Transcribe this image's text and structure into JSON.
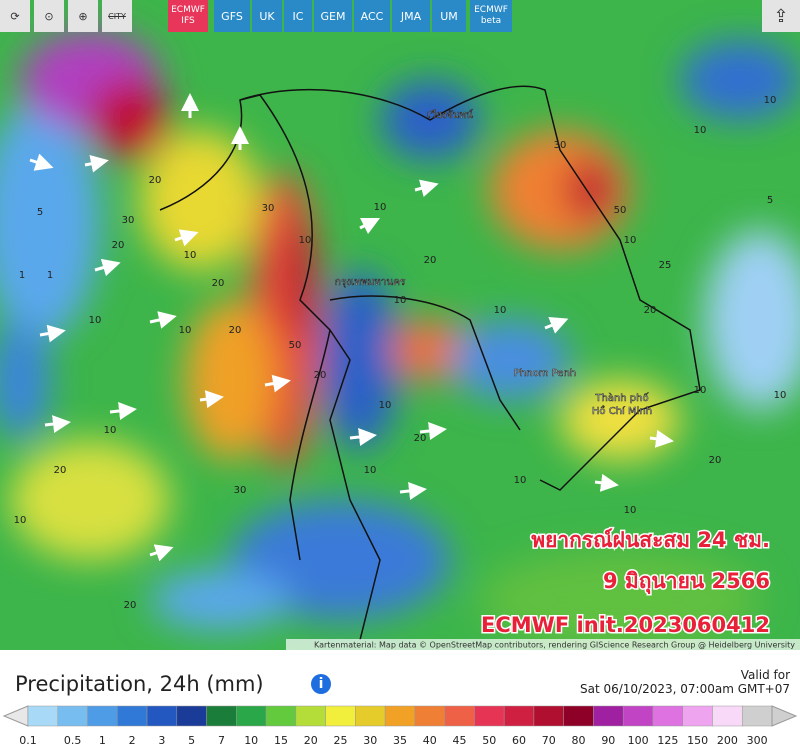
{
  "toolbar": {
    "city": "CITY",
    "models": [
      {
        "line1": "ECMWF",
        "line2": "IFS"
      },
      {
        "line1": "GFS"
      },
      {
        "line1": "UK"
      },
      {
        "line1": "IC"
      },
      {
        "line1": "GEM"
      },
      {
        "line1": "ACC"
      },
      {
        "line1": "JMA"
      },
      {
        "line1": "UM"
      },
      {
        "line1": "ECMWF",
        "line2": "beta"
      }
    ]
  },
  "map": {
    "places": [
      "กรุงเทพมหานคร",
      "Phnom Penh",
      "Thành phố",
      "Hồ Chí Minh",
      "เวียงจันทน์"
    ],
    "contours": [
      20,
      30,
      20,
      1,
      1,
      5,
      10,
      10,
      20,
      10,
      20,
      30,
      10,
      50,
      20,
      10,
      20,
      10,
      10,
      20,
      10,
      30,
      50,
      10,
      25,
      20,
      10,
      10,
      5,
      10,
      20,
      10,
      10,
      10,
      30,
      20,
      20,
      10,
      10,
      10
    ],
    "overlay": [
      "พยากรณ์ฝนสะสม 24 ชม.",
      "9 มิถุนายน 2566",
      "ECMWF init.2023060412"
    ],
    "attribution": "Kartenmaterial: Map data © OpenStreetMap contributors, rendering GIScience Research Group @ Heidelberg University"
  },
  "footer": {
    "title": "Precipitation, 24h (mm)",
    "valid_label": "Valid for",
    "valid_time": "Sat 06/10/2023, 07:00am GMT+07",
    "scale": {
      "values": [
        0.1,
        0.5,
        1,
        2,
        3,
        5,
        7,
        10,
        15,
        20,
        25,
        30,
        35,
        40,
        45,
        50,
        60,
        70,
        80,
        90,
        100,
        125,
        150,
        200,
        300
      ],
      "colors": [
        "#a8daf7",
        "#78bdf0",
        "#4f9ce6",
        "#3079d6",
        "#2258bf",
        "#1a3c98",
        "#1b7d3a",
        "#2aa748",
        "#63c93d",
        "#b4dd3a",
        "#f2ee3c",
        "#e6cc2a",
        "#f1a126",
        "#ef7f34",
        "#ef6147",
        "#e63455",
        "#cf2042",
        "#b10f30",
        "#8e0027",
        "#a020a2",
        "#c144c4",
        "#de72e0",
        "#efa4f0",
        "#f8d9f8",
        "#cfcfcf"
      ]
    }
  }
}
